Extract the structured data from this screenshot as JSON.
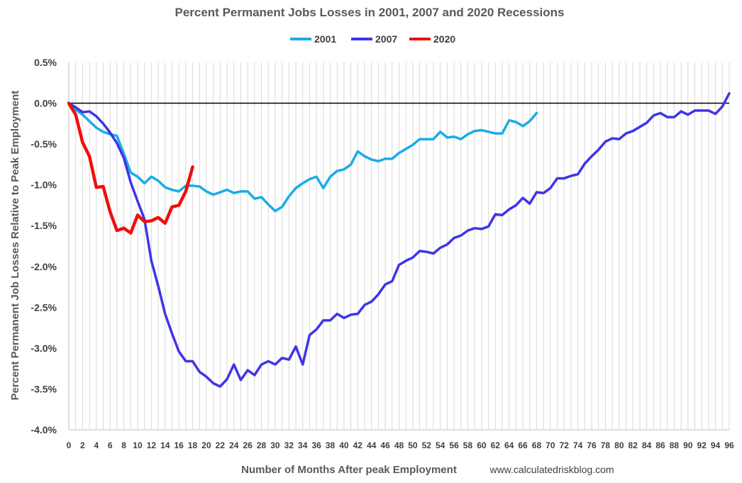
{
  "chart_data": {
    "type": "line",
    "title": "Percent Permanent Jobs Losses in 2001, 2007 and 2020 Recessions",
    "xlabel": "Number of Months After peak Employment",
    "ylabel": "Percent Permanent Job Losses Relative to Peak Employment",
    "source": "www.calculatedriskblog.com",
    "xlim": [
      0,
      96
    ],
    "ylim": [
      -4.0,
      0.5
    ],
    "x_ticks": [
      "0",
      "2",
      "4",
      "6",
      "8",
      "10",
      "12",
      "14",
      "16",
      "18",
      "20",
      "22",
      "24",
      "26",
      "28",
      "30",
      "32",
      "34",
      "36",
      "38",
      "40",
      "42",
      "44",
      "46",
      "48",
      "50",
      "52",
      "54",
      "56",
      "58",
      "60",
      "62",
      "64",
      "66",
      "68",
      "70",
      "72",
      "74",
      "76",
      "78",
      "80",
      "82",
      "84",
      "86",
      "88",
      "90",
      "92",
      "94",
      "96"
    ],
    "y_ticks": [
      "0.5%",
      "0.0%",
      "-0.5%",
      "-1.0%",
      "-1.5%",
      "-2.0%",
      "-2.5%",
      "-3.0%",
      "-3.5%",
      "-4.0%"
    ],
    "grid": "vertical",
    "legend_position": "top",
    "series": [
      {
        "name": "2001",
        "color": "#1aace6",
        "values": [
          0,
          -0.08,
          -0.14,
          -0.22,
          -0.3,
          -0.35,
          -0.38,
          -0.4,
          -0.62,
          -0.85,
          -0.9,
          -0.98,
          -0.9,
          -0.95,
          -1.03,
          -1.06,
          -1.08,
          -1.01,
          -1.01,
          -1.02,
          -1.08,
          -1.12,
          -1.09,
          -1.06,
          -1.1,
          -1.08,
          -1.08,
          -1.17,
          -1.15,
          -1.24,
          -1.32,
          -1.27,
          -1.14,
          -1.04,
          -0.98,
          -0.93,
          -0.9,
          -1.04,
          -0.9,
          -0.83,
          -0.81,
          -0.75,
          -0.59,
          -0.65,
          -0.69,
          -0.71,
          -0.68,
          -0.68,
          -0.61,
          -0.56,
          -0.51,
          -0.44,
          -0.44,
          -0.44,
          -0.35,
          -0.42,
          -0.41,
          -0.44,
          -0.38,
          -0.34,
          -0.33,
          -0.35,
          -0.37,
          -0.37,
          -0.21,
          -0.23,
          -0.28,
          -0.22,
          -0.12
        ]
      },
      {
        "name": "2007",
        "color": "#3e34e8",
        "values": [
          0,
          -0.05,
          -0.11,
          -0.1,
          -0.16,
          -0.25,
          -0.36,
          -0.49,
          -0.67,
          -0.97,
          -1.2,
          -1.42,
          -1.93,
          -2.24,
          -2.58,
          -2.82,
          -3.04,
          -3.16,
          -3.16,
          -3.29,
          -3.35,
          -3.43,
          -3.47,
          -3.38,
          -3.2,
          -3.39,
          -3.27,
          -3.33,
          -3.2,
          -3.16,
          -3.2,
          -3.12,
          -3.14,
          -2.98,
          -3.2,
          -2.84,
          -2.77,
          -2.66,
          -2.66,
          -2.58,
          -2.63,
          -2.59,
          -2.58,
          -2.47,
          -2.43,
          -2.34,
          -2.22,
          -2.18,
          -1.98,
          -1.93,
          -1.89,
          -1.81,
          -1.82,
          -1.84,
          -1.77,
          -1.73,
          -1.65,
          -1.62,
          -1.56,
          -1.53,
          -1.54,
          -1.51,
          -1.36,
          -1.37,
          -1.3,
          -1.25,
          -1.16,
          -1.23,
          -1.09,
          -1.1,
          -1.04,
          -0.92,
          -0.92,
          -0.89,
          -0.87,
          -0.74,
          -0.65,
          -0.57,
          -0.47,
          -0.43,
          -0.44,
          -0.37,
          -0.34,
          -0.29,
          -0.24,
          -0.15,
          -0.12,
          -0.17,
          -0.17,
          -0.1,
          -0.14,
          -0.09,
          -0.09,
          -0.09,
          -0.13,
          -0.04,
          0.12
        ]
      },
      {
        "name": "2020",
        "color": "#f20d0d",
        "values": [
          0,
          -0.14,
          -0.48,
          -0.65,
          -1.03,
          -1.02,
          -1.33,
          -1.56,
          -1.53,
          -1.59,
          -1.37,
          -1.45,
          -1.44,
          -1.4,
          -1.47,
          -1.27,
          -1.25,
          -1.08,
          -0.78
        ]
      }
    ]
  }
}
